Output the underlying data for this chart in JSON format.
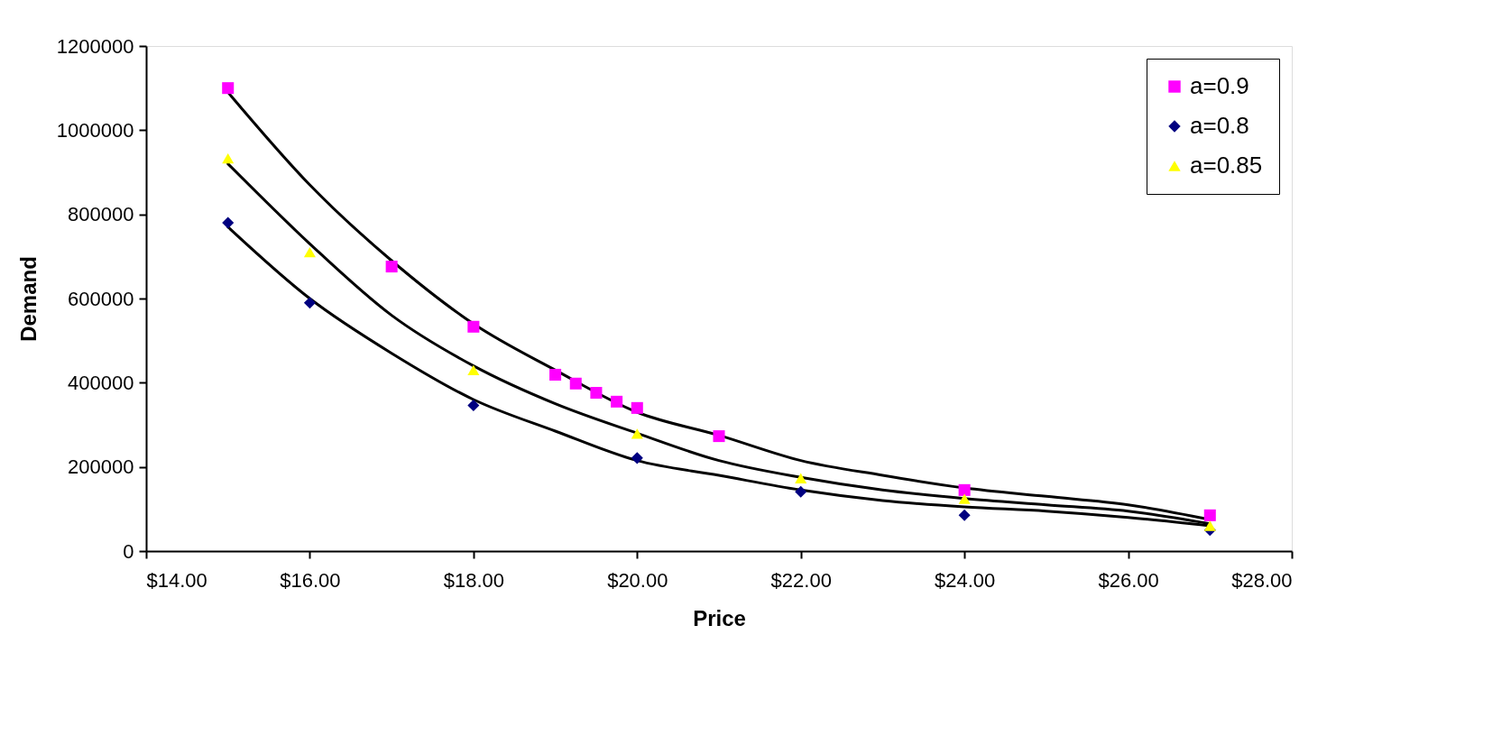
{
  "chart_data": {
    "type": "scatter",
    "xlabel": "Price",
    "ylabel": "Demand",
    "xlim": [
      14,
      28
    ],
    "xticks": [
      {
        "value": 14,
        "label": "$14.00"
      },
      {
        "value": 16,
        "label": "$16.00"
      },
      {
        "value": 18,
        "label": "$18.00"
      },
      {
        "value": 20,
        "label": "$20.00"
      },
      {
        "value": 22,
        "label": "$22.00"
      },
      {
        "value": 24,
        "label": "$24.00"
      },
      {
        "value": 26,
        "label": "$26.00"
      },
      {
        "value": 28,
        "label": "$28.00"
      }
    ],
    "ylim": [
      0,
      1200000
    ],
    "yticks": [
      0,
      200000,
      400000,
      600000,
      800000,
      1000000,
      1200000
    ],
    "grid": false,
    "legend": "top right",
    "series": [
      {
        "name": "a=0.9",
        "color": "#ff00ff",
        "marker": "square",
        "x": [
          15,
          17,
          18,
          19,
          19.25,
          19.5,
          19.75,
          20,
          21,
          24,
          27
        ],
        "values": [
          1100000,
          676000,
          533000,
          419000,
          398000,
          376000,
          355000,
          340000,
          273000,
          145000,
          85000
        ]
      },
      {
        "name": "a=0.8",
        "color": "#000080",
        "marker": "diamond",
        "x": [
          15,
          16,
          18,
          20,
          22,
          24,
          27
        ],
        "values": [
          780000,
          590000,
          346000,
          221000,
          141000,
          85000,
          50000
        ]
      },
      {
        "name": "a=0.85",
        "color": "#ffff00",
        "marker": "triangle",
        "x": [
          15,
          16,
          18,
          20,
          22,
          24,
          27
        ],
        "values": [
          933000,
          710000,
          430000,
          279000,
          173000,
          124000,
          60000
        ]
      },
      {
        "type": "line",
        "color": "#000000",
        "marker": "none",
        "x": [
          15,
          16,
          17,
          18,
          19,
          20,
          21,
          22,
          23,
          24,
          25,
          26,
          27
        ],
        "values": [
          1090000,
          870000,
          690000,
          540000,
          430000,
          330000,
          275000,
          215000,
          180000,
          150000,
          130000,
          110000,
          75000
        ]
      },
      {
        "type": "line",
        "color": "#000000",
        "marker": "none",
        "x": [
          15,
          16,
          17,
          18,
          19,
          20,
          21,
          22,
          23,
          24,
          25,
          26,
          27
        ],
        "values": [
          920000,
          730000,
          560000,
          440000,
          350000,
          280000,
          215000,
          175000,
          145000,
          125000,
          110000,
          95000,
          65000
        ]
      },
      {
        "type": "line",
        "color": "#000000",
        "marker": "none",
        "x": [
          15,
          16,
          17,
          18,
          19,
          20,
          21,
          22,
          23,
          24,
          25,
          26,
          27
        ],
        "values": [
          770000,
          600000,
          470000,
          360000,
          285000,
          215000,
          180000,
          145000,
          120000,
          105000,
          95000,
          80000,
          60000
        ]
      }
    ]
  }
}
